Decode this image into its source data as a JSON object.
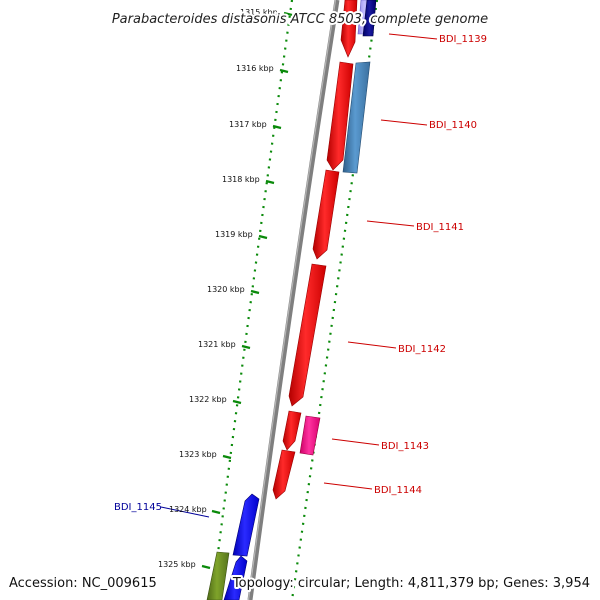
{
  "title": "Parabacteroides distasonis ATCC 8503, complete genome",
  "accession": "Accession: NC_009615",
  "summary": "Topology: circular; Length: 4,811,379 bp; Genes: 3,954",
  "ticks": [
    "1315 kbp",
    "1316 kbp",
    "1317 kbp",
    "1318 kbp",
    "1319 kbp",
    "1320 kbp",
    "1321 kbp",
    "1322 kbp",
    "1323 kbp",
    "1324 kbp",
    "1325 kbp"
  ],
  "gene_labels": [
    {
      "name": "BDI_1139",
      "color": "#cc0000"
    },
    {
      "name": "BDI_1140",
      "color": "#cc0000"
    },
    {
      "name": "BDI_1141",
      "color": "#cc0000"
    },
    {
      "name": "BDI_1142",
      "color": "#cc0000"
    },
    {
      "name": "BDI_1143",
      "color": "#cc0000"
    },
    {
      "name": "BDI_1144",
      "color": "#cc0000"
    },
    {
      "name": "BDI_1145",
      "color": "#000099"
    }
  ],
  "colors": {
    "backbone": "#7f7f7f",
    "tick_dots": "#0a8a0a",
    "red_gene": "#ff1a1a",
    "blue_gene": "#1a1aff",
    "steel_gene": "#4682b4",
    "navy_gene": "#000080",
    "pink_gene": "#ff1a99",
    "olive_gene": "#6b8e23",
    "lavender_gene": "#b0a8ff"
  }
}
